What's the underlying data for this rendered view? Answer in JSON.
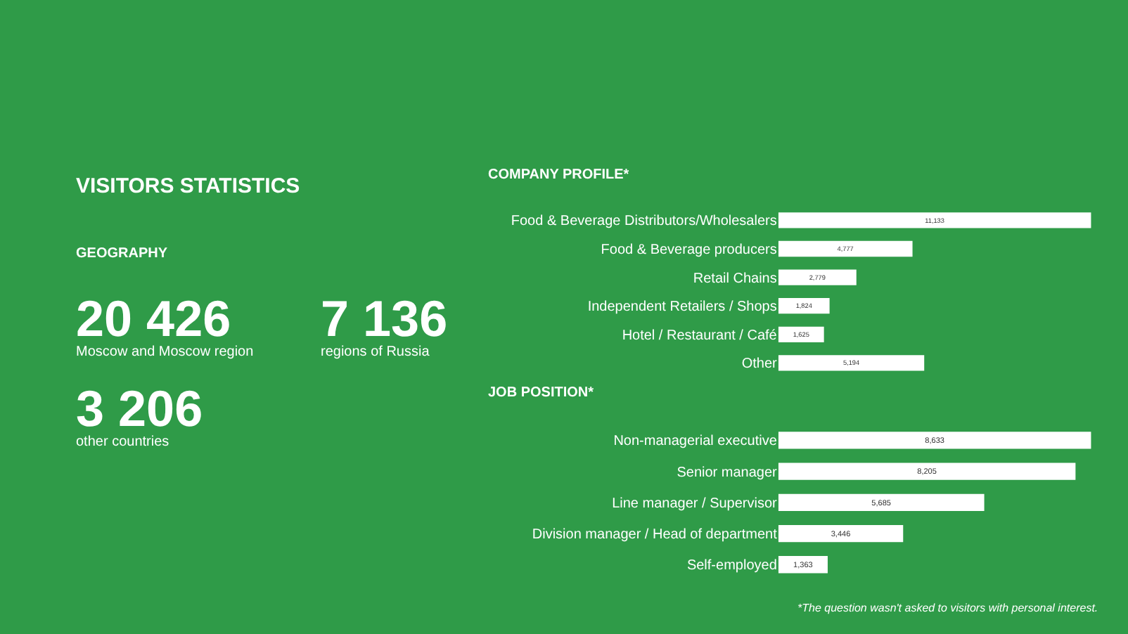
{
  "chart_data": [
    {
      "type": "other",
      "title": "VISITORS STATISTICS",
      "subtitle": "GEOGRAPHY",
      "categories": [
        "Moscow and Moscow region",
        "regions of Russia",
        "other countries"
      ],
      "values": [
        20426,
        7136,
        3206
      ],
      "data_labels": true
    },
    {
      "type": "bar",
      "orientation": "horizontal",
      "title": "COMPANY PROFILE*",
      "categories": [
        "Food & Beverage Distributors/Wholesalers",
        "Food & Beverage producers",
        "Retail Chains",
        "Independent Retailers / Shops",
        "Hotel / Restaurant / Café",
        "Other"
      ],
      "values": [
        11133,
        4777,
        2779,
        1824,
        1625,
        5194
      ],
      "value_labels": [
        "11,133",
        "4,777",
        "2,779",
        "1,824",
        "1,625",
        "5,194"
      ],
      "color": "#ffffff"
    },
    {
      "type": "bar",
      "orientation": "horizontal",
      "title": "JOB POSITION*",
      "categories": [
        "Non-managerial executive",
        "Senior manager",
        "Line manager / Supervisor",
        "Division manager / Head of department",
        "Self-employed"
      ],
      "values": [
        8633,
        8205,
        5685,
        3446,
        1363
      ],
      "value_labels": [
        "8,633",
        "8,205",
        "5,685",
        "3,446",
        "1,363"
      ],
      "color": "#ffffff",
      "annotations": [
        "*The question wasn't asked to visitors with personal interest."
      ]
    }
  ]
}
